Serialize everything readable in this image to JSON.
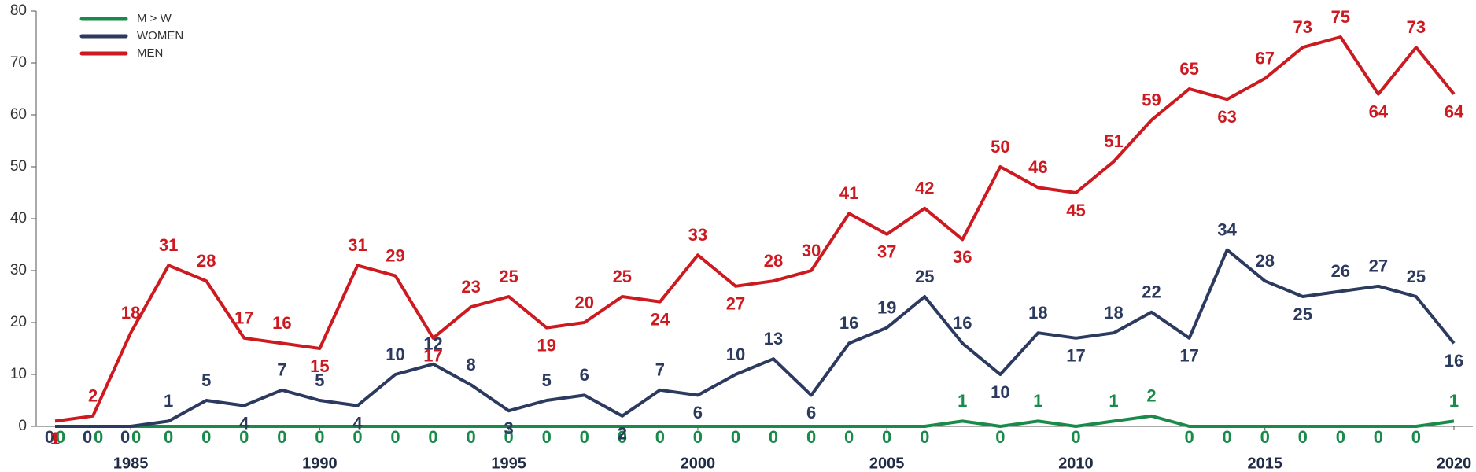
{
  "chart_data": {
    "type": "line",
    "x": [
      1983,
      1984,
      1985,
      1986,
      1987,
      1988,
      1989,
      1990,
      1991,
      1992,
      1993,
      1994,
      1995,
      1996,
      1997,
      1998,
      1999,
      2000,
      2001,
      2002,
      2003,
      2004,
      2005,
      2006,
      2007,
      2008,
      2009,
      2010,
      2011,
      2012,
      2013,
      2014,
      2015,
      2016,
      2017,
      2018,
      2019,
      2020
    ],
    "series": [
      {
        "name": "M > W",
        "color": "#1a8a4a",
        "values": [
          0,
          0,
          0,
          0,
          0,
          0,
          0,
          0,
          0,
          0,
          0,
          0,
          0,
          0,
          0,
          0,
          0,
          0,
          0,
          0,
          0,
          0,
          0,
          0,
          1,
          0,
          1,
          0,
          1,
          2,
          0,
          0,
          0,
          0,
          0,
          0,
          0,
          1
        ]
      },
      {
        "name": "WOMEN",
        "color": "#2b3a5e",
        "values": [
          0,
          0,
          0,
          1,
          5,
          4,
          7,
          5,
          4,
          10,
          12,
          8,
          3,
          5,
          6,
          2,
          7,
          6,
          10,
          13,
          6,
          16,
          19,
          25,
          16,
          10,
          18,
          17,
          18,
          22,
          17,
          34,
          28,
          25,
          26,
          27,
          25,
          16
        ]
      },
      {
        "name": "MEN",
        "color": "#cc1a20",
        "values": [
          1,
          2,
          18,
          31,
          28,
          17,
          16,
          15,
          31,
          29,
          17,
          23,
          25,
          19,
          20,
          25,
          24,
          33,
          27,
          28,
          30,
          41,
          37,
          42,
          36,
          50,
          46,
          45,
          51,
          59,
          65,
          63,
          67,
          73,
          75,
          64,
          73,
          64
        ]
      }
    ],
    "xlim": [
      1982.5,
      2020.5
    ],
    "xticks": [
      1985,
      1990,
      1995,
      2000,
      2005,
      2010,
      2015,
      2020
    ],
    "ylim": [
      0,
      80
    ],
    "yticks": [
      0,
      10,
      20,
      30,
      40,
      50,
      60,
      70,
      80
    ],
    "legend": "top-left"
  }
}
